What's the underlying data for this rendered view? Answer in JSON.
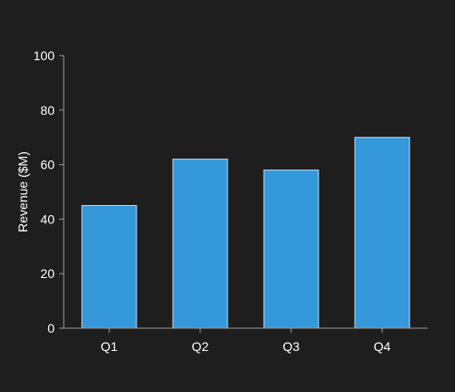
{
  "chart_data": {
    "type": "bar",
    "categories": [
      "Q1",
      "Q2",
      "Q3",
      "Q4"
    ],
    "values": [
      45,
      62,
      58,
      70
    ],
    "title": "",
    "xlabel": "",
    "ylabel": "Revenue ($M)",
    "ylim": [
      0,
      100
    ],
    "yticks": [
      0,
      20,
      40,
      60,
      80,
      100
    ],
    "grid": false,
    "legend": "none",
    "bar_color": "#3498db",
    "background_color": "#1e1e1e"
  }
}
